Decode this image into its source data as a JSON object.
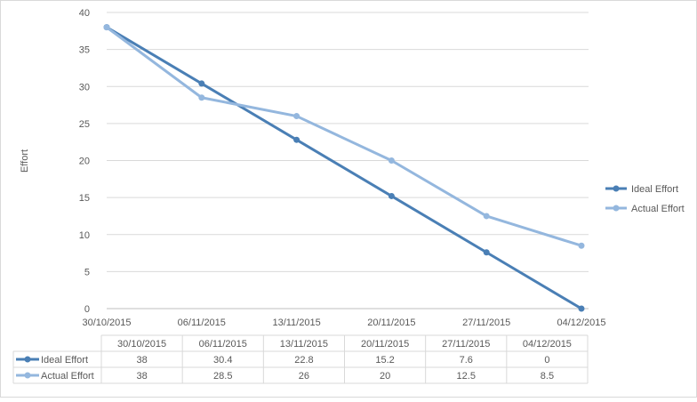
{
  "chart_data": {
    "type": "line",
    "title": "",
    "xlabel": "",
    "ylabel": "Effort",
    "ylim": [
      0,
      40
    ],
    "yticks": [
      0,
      5,
      10,
      15,
      20,
      25,
      30,
      35,
      40
    ],
    "grid": true,
    "legend_position": "right",
    "x": [
      "30/10/2015",
      "06/11/2015",
      "13/11/2015",
      "20/11/2015",
      "27/11/2015",
      "04/12/2015"
    ],
    "series": [
      {
        "name": "Ideal Effort",
        "color": "#4a7fb5",
        "values": [
          38,
          30.4,
          22.8,
          15.2,
          7.6,
          0
        ]
      },
      {
        "name": "Actual Effort",
        "color": "#94b7de",
        "values": [
          38,
          28.5,
          26,
          20,
          12.5,
          8.5
        ]
      }
    ],
    "data_table": {
      "cells": [
        [
          "38",
          "30.4",
          "22.8",
          "15.2",
          "7.6",
          "0"
        ],
        [
          "38",
          "28.5",
          "26",
          "20",
          "12.5",
          "8.5"
        ]
      ]
    }
  }
}
